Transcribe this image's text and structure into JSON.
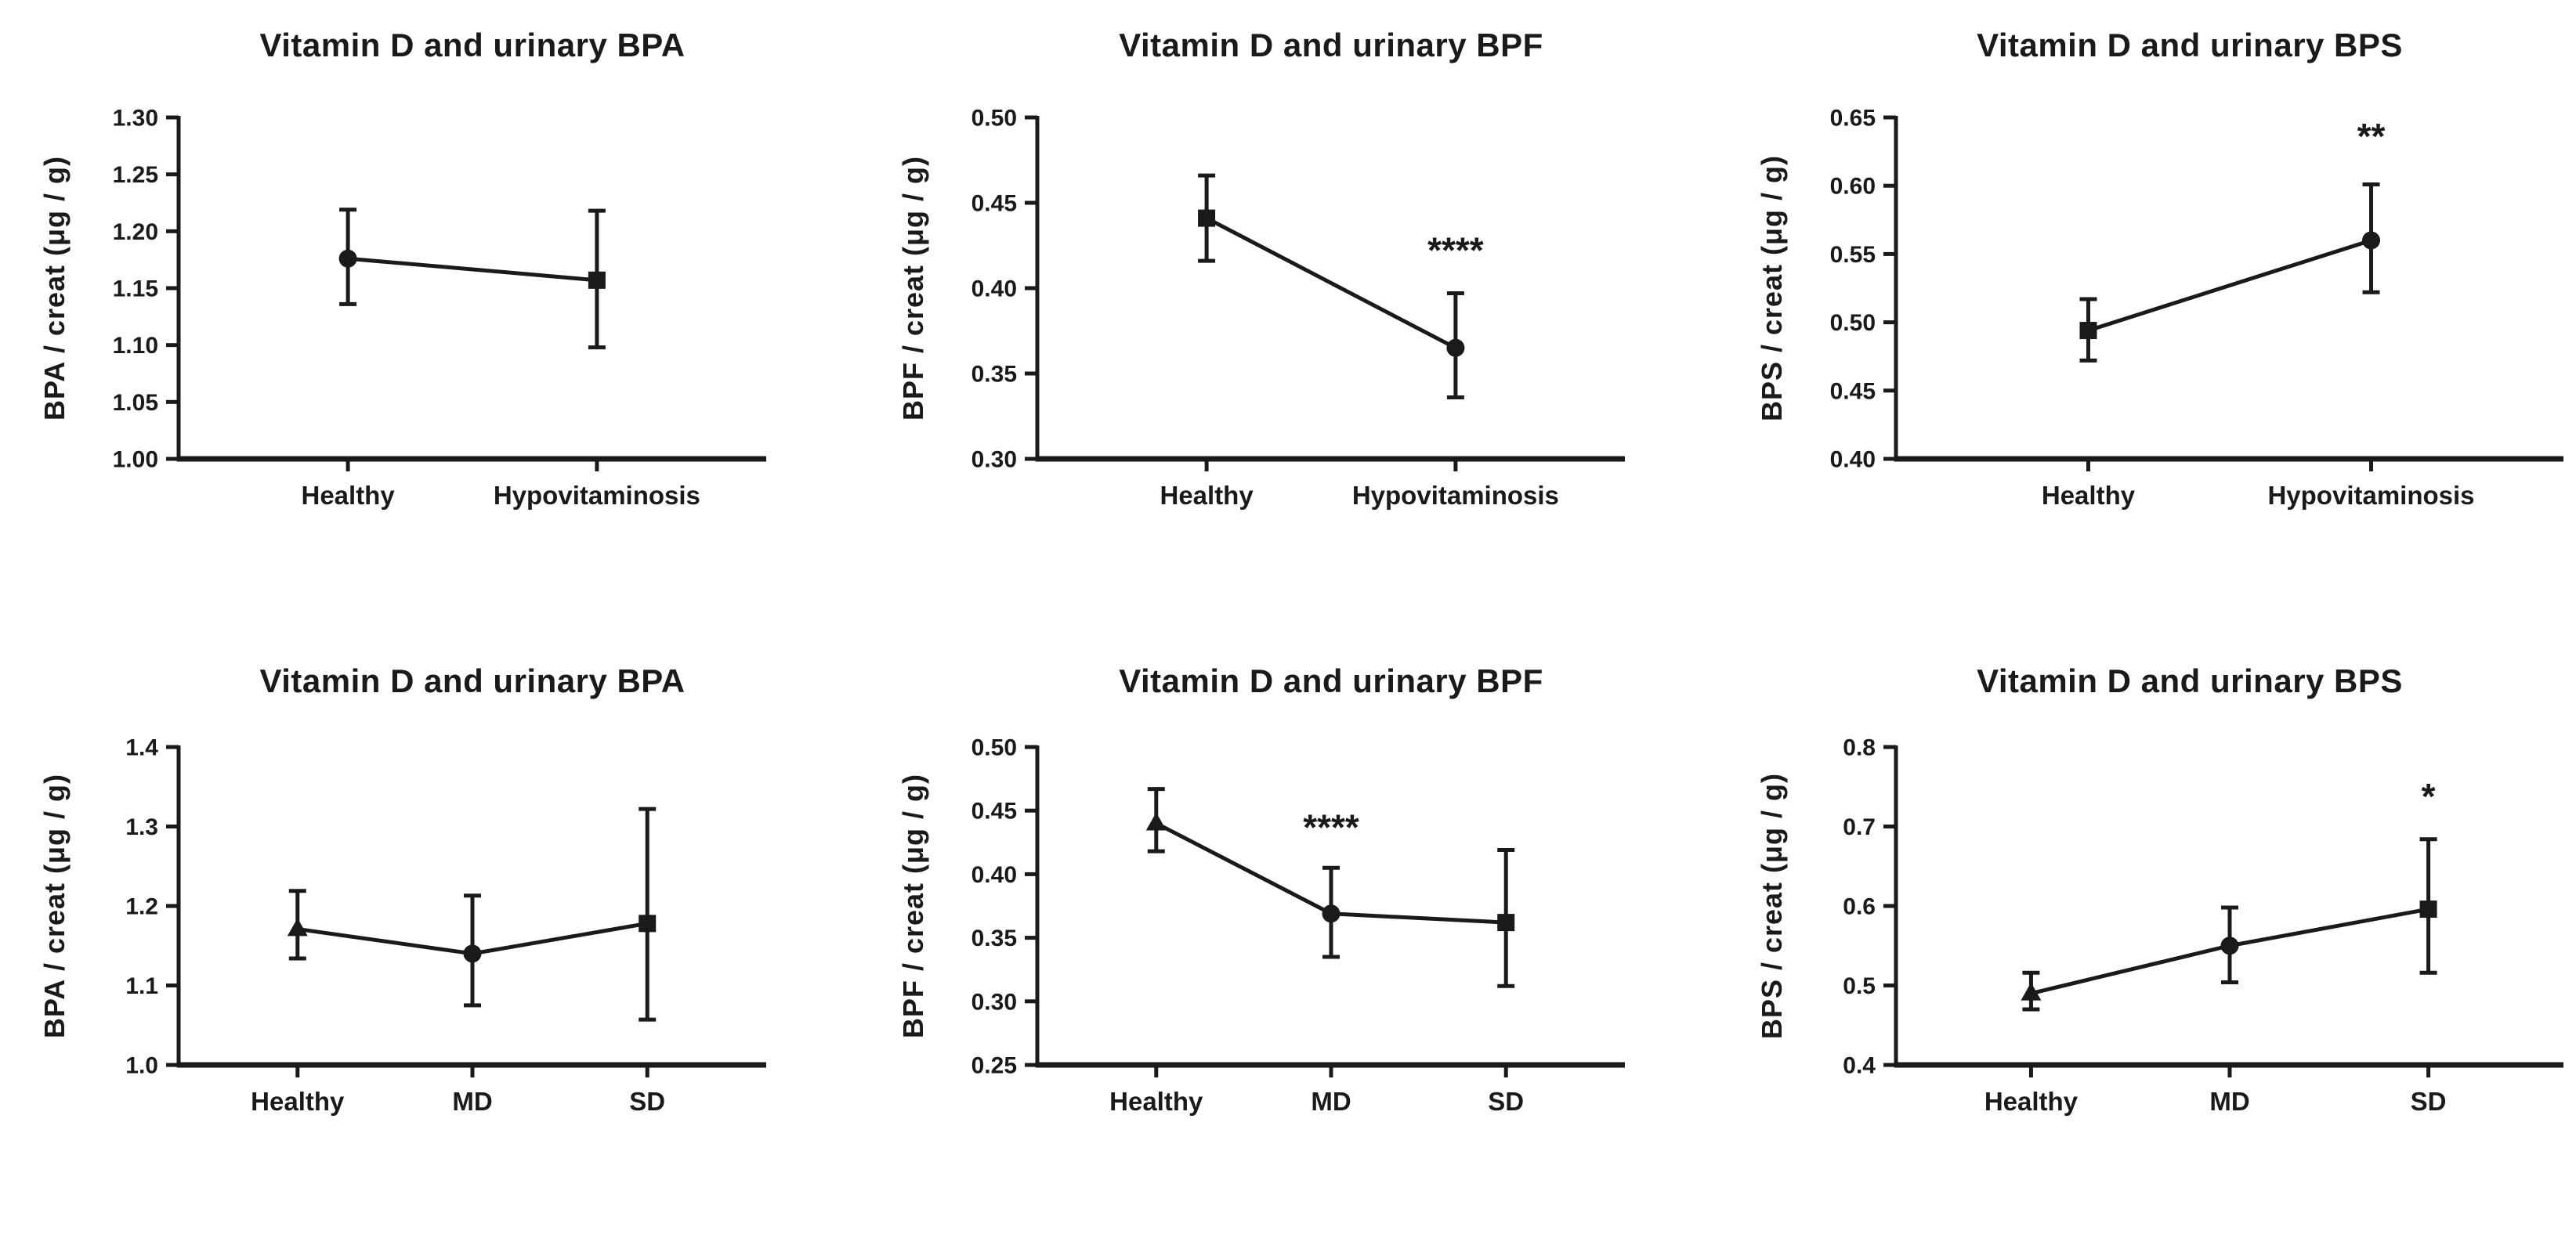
{
  "figure": {
    "background": "#ffffff",
    "ink": "#1a1a1a",
    "description": "Six mean-and-error-bar plots relating vitamin D status to urinary bisphenol levels"
  },
  "chart_data": [
    {
      "type": "line",
      "title": "Vitamin D and urinary BPA",
      "ylabel": "BPA / creat (μg / g)",
      "xlabel": "",
      "categories": [
        "Healthy",
        "Hypovitaminosis"
      ],
      "ylim": [
        1.0,
        1.3
      ],
      "yticks": [
        "1.00",
        "1.05",
        "1.10",
        "1.15",
        "1.20",
        "1.25",
        "1.30"
      ],
      "grid": false,
      "series": [
        {
          "name": "mean with error bars",
          "values": [
            1.176,
            1.157
          ],
          "err_lo": [
            1.136,
            1.098
          ],
          "err_hi": [
            1.219,
            1.218
          ],
          "markers": [
            "circle",
            "square"
          ]
        }
      ],
      "annotations": []
    },
    {
      "type": "line",
      "title": "Vitamin D and urinary BPF",
      "ylabel": "BPF / creat (μg / g)",
      "xlabel": "",
      "categories": [
        "Healthy",
        "Hypovitaminosis"
      ],
      "ylim": [
        0.3,
        0.5
      ],
      "yticks": [
        "0.30",
        "0.35",
        "0.40",
        "0.45",
        "0.50"
      ],
      "grid": false,
      "series": [
        {
          "name": "mean with error bars",
          "values": [
            0.441,
            0.365
          ],
          "err_lo": [
            0.416,
            0.336
          ],
          "err_hi": [
            0.466,
            0.397
          ],
          "markers": [
            "square",
            "circle"
          ]
        }
      ],
      "annotations": [
        {
          "text": "****",
          "category_index": 1,
          "y": 0.415
        }
      ]
    },
    {
      "type": "line",
      "title": "Vitamin D and urinary BPS",
      "ylabel": "BPS / creat (μg / g)",
      "xlabel": "",
      "categories": [
        "Healthy",
        "Hypovitaminosis"
      ],
      "ylim": [
        0.4,
        0.65
      ],
      "yticks": [
        "0.40",
        "0.45",
        "0.50",
        "0.55",
        "0.60",
        "0.65"
      ],
      "grid": false,
      "series": [
        {
          "name": "mean with error bars",
          "values": [
            0.494,
            0.56
          ],
          "err_lo": [
            0.472,
            0.522
          ],
          "err_hi": [
            0.517,
            0.601
          ],
          "markers": [
            "square",
            "circle"
          ]
        }
      ],
      "annotations": [
        {
          "text": "**",
          "category_index": 1,
          "y": 0.627
        }
      ]
    },
    {
      "type": "line",
      "title": "Vitamin D and urinary BPA",
      "ylabel": "BPA / creat (μg / g)",
      "xlabel": "",
      "categories": [
        "Healthy",
        "MD",
        "SD"
      ],
      "ylim": [
        1.0,
        1.4
      ],
      "yticks": [
        "1.0",
        "1.1",
        "1.2",
        "1.3",
        "1.4"
      ],
      "grid": false,
      "series": [
        {
          "name": "mean with error bars",
          "values": [
            1.171,
            1.14,
            1.178
          ],
          "err_lo": [
            1.134,
            1.075,
            1.057
          ],
          "err_hi": [
            1.219,
            1.213,
            1.322
          ],
          "markers": [
            "triangle",
            "circle",
            "square"
          ]
        }
      ],
      "annotations": []
    },
    {
      "type": "line",
      "title": "Vitamin D and urinary BPF",
      "ylabel": "BPF / creat (μg / g)",
      "xlabel": "",
      "categories": [
        "Healthy",
        "MD",
        "SD"
      ],
      "ylim": [
        0.25,
        0.5
      ],
      "yticks": [
        "0.25",
        "0.30",
        "0.35",
        "0.40",
        "0.45",
        "0.50"
      ],
      "grid": false,
      "series": [
        {
          "name": "mean with error bars",
          "values": [
            0.44,
            0.369,
            0.362
          ],
          "err_lo": [
            0.418,
            0.335,
            0.312
          ],
          "err_hi": [
            0.467,
            0.405,
            0.419
          ],
          "markers": [
            "triangle",
            "circle",
            "square"
          ]
        }
      ],
      "annotations": [
        {
          "text": "****",
          "category_index": 1,
          "y": 0.427
        }
      ]
    },
    {
      "type": "line",
      "title": "Vitamin D and urinary BPS",
      "ylabel": "BPS / creat (μg / g)",
      "xlabel": "",
      "categories": [
        "Healthy",
        "MD",
        "SD"
      ],
      "ylim": [
        0.4,
        0.8
      ],
      "yticks": [
        "0.4",
        "0.5",
        "0.6",
        "0.7",
        "0.8"
      ],
      "grid": false,
      "series": [
        {
          "name": "mean with error bars",
          "values": [
            0.49,
            0.55,
            0.596
          ],
          "err_lo": [
            0.47,
            0.504,
            0.516
          ],
          "err_hi": [
            0.516,
            0.598,
            0.684
          ],
          "markers": [
            "triangle",
            "circle",
            "square"
          ]
        }
      ],
      "annotations": [
        {
          "text": "*",
          "category_index": 2,
          "y": 0.722
        }
      ]
    }
  ]
}
